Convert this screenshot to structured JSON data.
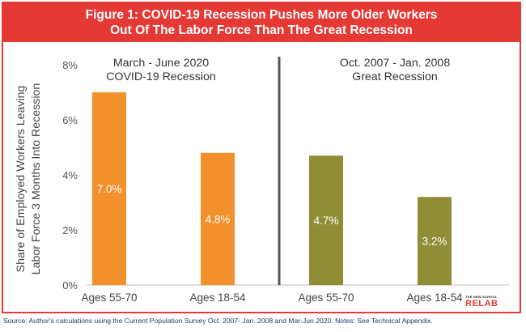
{
  "title": {
    "line1": "Figure 1: COVID-19 Recession Pushes More Older Workers",
    "line2": "Out Of The Labor Force Than The Great Recession"
  },
  "source": "Source: Author's calculations using the Current Population Survey Oct. 2007- Jan. 2008 and Mar-Jun 2020. Notes: See Technical Appendix.",
  "logo": {
    "small": "THE NEW SCHOOL",
    "big": "RELAB"
  },
  "colors": {
    "accent": "#e53935",
    "covid": "#f2912b",
    "great": "#8f8e37",
    "text": "#444444",
    "source": "#1f3d63"
  },
  "chart_data": {
    "type": "bar",
    "ylabel": [
      "Share of Employed Workers Leaving",
      "Labor Force 3 Months Into Recession"
    ],
    "ylim": [
      0,
      8
    ],
    "yticks": [
      "0%",
      "2%",
      "4%",
      "6%",
      "8%"
    ],
    "grid": false,
    "groups": [
      {
        "label_line1": "March - June 2020",
        "label_line2": "COVID-19 Recession",
        "color": "#f2912b",
        "categories": [
          "Ages 55-70",
          "Ages 18-54"
        ],
        "values": [
          7.0,
          4.8
        ],
        "labels": [
          "7.0%",
          "4.8%"
        ]
      },
      {
        "label_line1": "Oct. 2007 - Jan. 2008",
        "label_line2": "Great Recession",
        "color": "#8f8e37",
        "categories": [
          "Ages 55-70",
          "Ages 18-54"
        ],
        "values": [
          4.7,
          3.2
        ],
        "labels": [
          "4.7%",
          "3.2%"
        ]
      }
    ]
  }
}
